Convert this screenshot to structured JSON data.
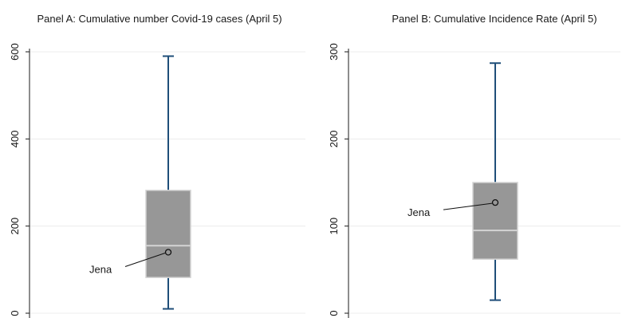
{
  "chart_data": [
    {
      "type": "box",
      "title": "Panel A: Cumulative number Covid-19 cases (April 5)",
      "xlabel": "",
      "ylabel": "",
      "ylim": [
        0,
        600
      ],
      "yticks": [
        0,
        200,
        400,
        600
      ],
      "grid": true,
      "box": {
        "min": 10,
        "q1": 82,
        "median": 155,
        "q3": 282,
        "max": 590
      },
      "highlight": {
        "label": "Jena",
        "value": 140
      }
    },
    {
      "type": "box",
      "title": "Panel B: Cumulative Incidence Rate (April 5)",
      "xlabel": "",
      "ylabel": "",
      "ylim": [
        0,
        300
      ],
      "yticks": [
        0,
        100,
        200,
        300
      ],
      "grid": true,
      "box": {
        "min": 15,
        "q1": 62,
        "median": 95,
        "q3": 150,
        "max": 287
      },
      "highlight": {
        "label": "Jena",
        "value": 127
      }
    }
  ]
}
